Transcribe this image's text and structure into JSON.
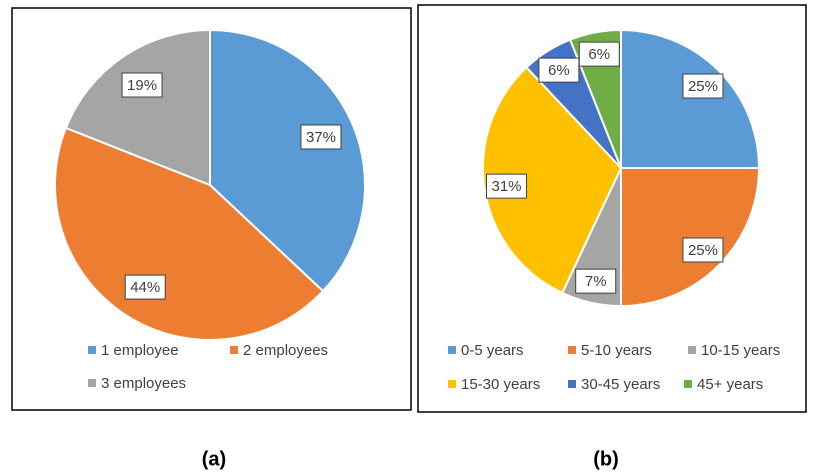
{
  "chart_data": [
    {
      "type": "pie",
      "caption": "(a)",
      "categories": [
        "1 employee",
        "2 employees",
        "3 employees"
      ],
      "values": [
        37,
        44,
        19
      ],
      "value_labels": [
        "37%",
        "44%",
        "19%"
      ],
      "colors": [
        "#5b9bd5",
        "#ed7d31",
        "#a5a5a5"
      ]
    },
    {
      "type": "pie",
      "caption": "(b)",
      "categories": [
        "0-5 years",
        "5-10 years",
        "10-15 years",
        "15-30 years",
        "30-45 years",
        "45+ years"
      ],
      "values": [
        25,
        25,
        7,
        31,
        6,
        6
      ],
      "value_labels": [
        "25%",
        "25%",
        "7%",
        "31%",
        "6%",
        "6%"
      ],
      "colors": [
        "#5b9bd5",
        "#ed7d31",
        "#a5a5a5",
        "#ffc000",
        "#4472c4",
        "#70ad47"
      ]
    }
  ]
}
